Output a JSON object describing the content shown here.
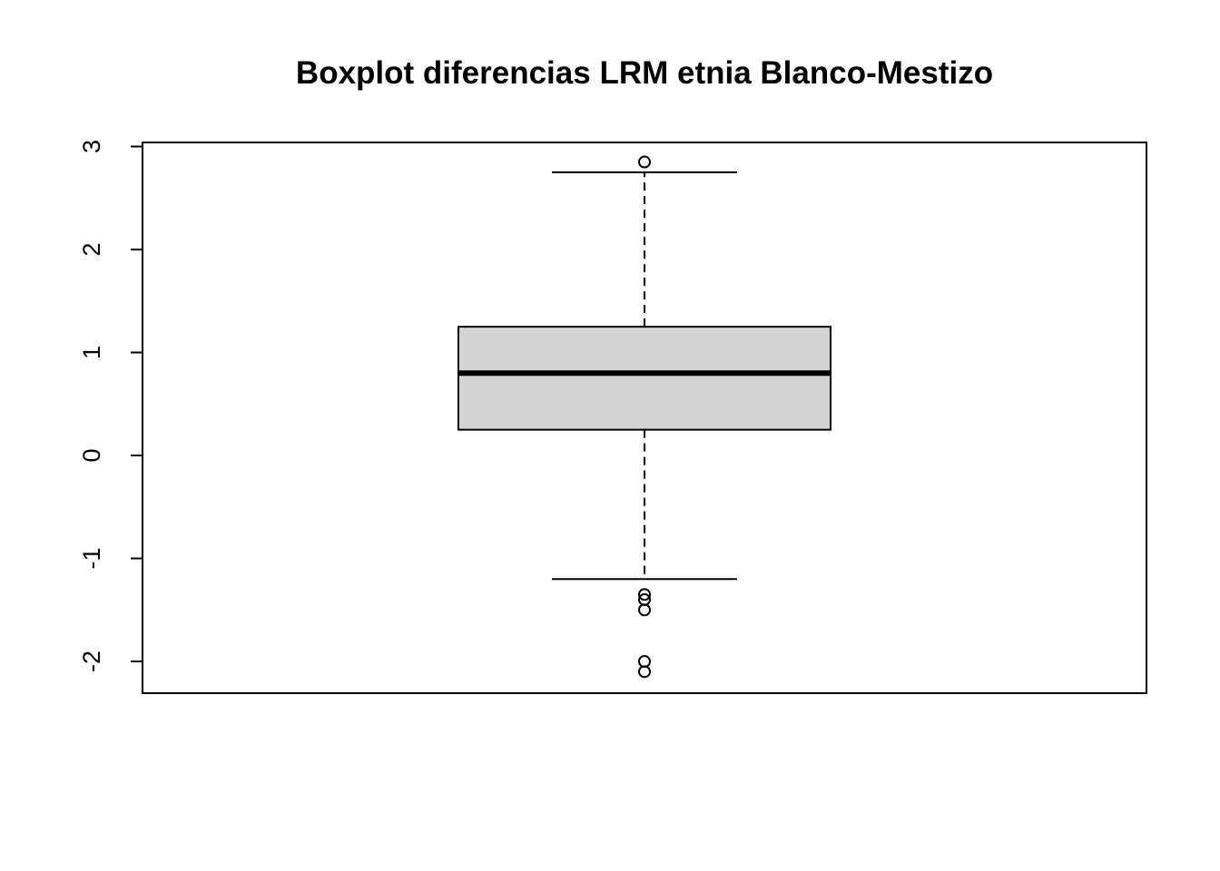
{
  "chart_data": {
    "type": "boxplot",
    "title": "Boxplot diferencias LRM etnia Blanco-Mestizo",
    "xlabel": "",
    "ylabel": "",
    "ylim": [
      -2.3,
      3.05
    ],
    "y_ticks": [
      -2,
      -1,
      0,
      1,
      2,
      3
    ],
    "y_tick_labels": [
      "-2",
      "-1",
      "0",
      "1",
      "2",
      "3"
    ],
    "grid": false,
    "box": {
      "lower_whisker": -1.2,
      "q1": 0.25,
      "median": 0.8,
      "q3": 1.25,
      "upper_whisker": 2.75
    },
    "outliers": [
      2.85,
      -1.35,
      -1.4,
      -1.5,
      -2.0,
      -2.1
    ],
    "colors": {
      "box_fill": "#d3d3d3",
      "stroke": "#000000"
    }
  }
}
